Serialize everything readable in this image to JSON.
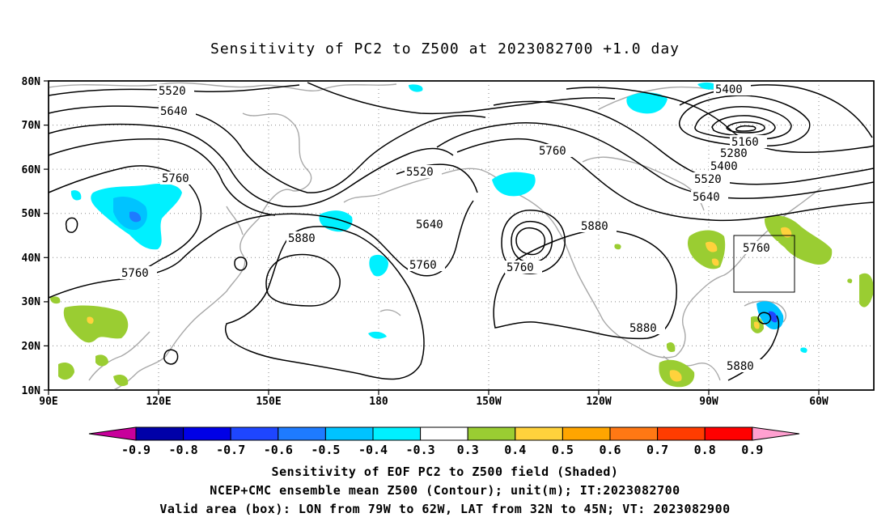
{
  "title": "Sensitivity of PC2 to Z500 at 2023082700 +1.0 day",
  "map": {
    "lat_labels": [
      "80N",
      "70N",
      "60N",
      "50N",
      "40N",
      "30N",
      "20N",
      "10N"
    ],
    "lon_labels": [
      "90E",
      "120E",
      "150E",
      "180",
      "150W",
      "120W",
      "90W",
      "60W"
    ],
    "contour_labels": [
      {
        "text": "5520"
      },
      {
        "text": "5640"
      },
      {
        "text": "5760"
      },
      {
        "text": "5760"
      },
      {
        "text": "5880"
      },
      {
        "text": "5520"
      },
      {
        "text": "5640"
      },
      {
        "text": "5760"
      },
      {
        "text": "5760"
      },
      {
        "text": "5760"
      },
      {
        "text": "5880"
      },
      {
        "text": "5880"
      },
      {
        "text": "5400"
      },
      {
        "text": "5160"
      },
      {
        "text": "5280"
      },
      {
        "text": "5400"
      },
      {
        "text": "5520"
      },
      {
        "text": "5640"
      },
      {
        "text": "5760"
      },
      {
        "text": "5880"
      }
    ],
    "valid_box": {
      "lon_from": "79W",
      "lon_to": "62W",
      "lat_from": "32N",
      "lat_to": "45N"
    }
  },
  "colorbar": {
    "labels": [
      "-0.9",
      "-0.8",
      "-0.7",
      "-0.6",
      "-0.5",
      "-0.4",
      "-0.3",
      "0.3",
      "0.4",
      "0.5",
      "0.6",
      "0.7",
      "0.8",
      "0.9"
    ],
    "colors": [
      "#0000a8",
      "#0000e6",
      "#1e46ff",
      "#1e7bff",
      "#00c3ff",
      "#00f0ff",
      "#ffffff",
      "#9acd32",
      "#ffd23c",
      "#ffa500",
      "#ff7814",
      "#ff3c00",
      "#ff0000"
    ],
    "low_arrow_color": "#c8009b",
    "high_arrow_color": "#ffa0d0"
  },
  "captions": {
    "line1": "Sensitivity of EOF PC2 to Z500 field (Shaded)",
    "line2": "NCEP+CMC ensemble mean Z500 (Contour); unit(m); IT:2023082700",
    "line3": "Valid area (box): LON from 79W to 62W, LAT from 32N to 45N; VT: 2023082900"
  }
}
